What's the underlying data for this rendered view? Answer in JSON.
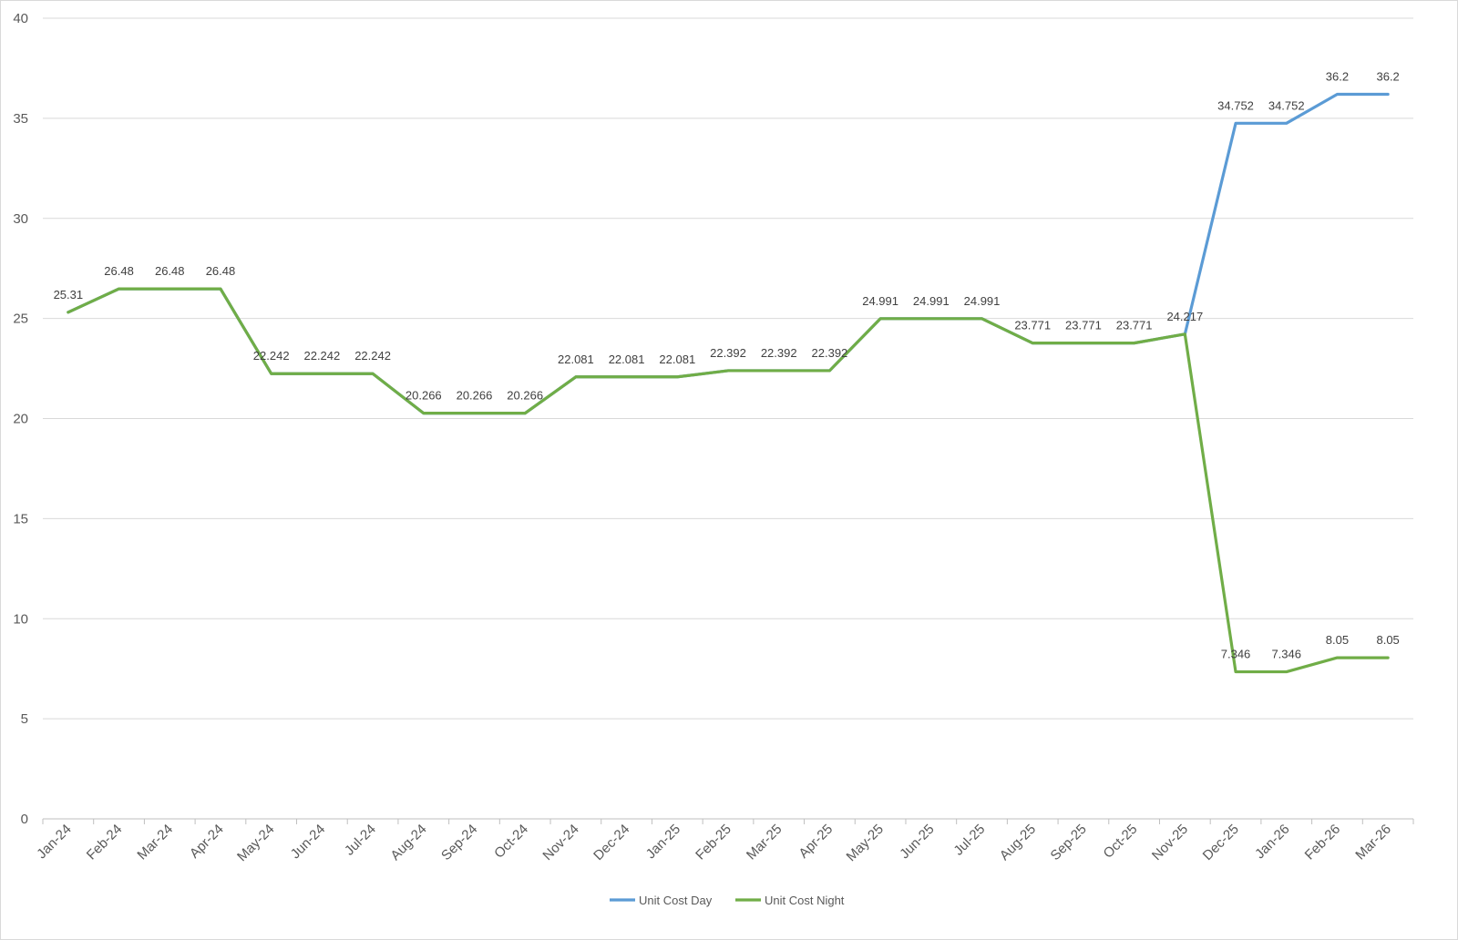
{
  "chart_data": {
    "type": "line",
    "title": "",
    "xlabel": "",
    "ylabel": "",
    "ylim": [
      0,
      40
    ],
    "yticks": [
      0,
      5,
      10,
      15,
      20,
      25,
      30,
      35,
      40
    ],
    "grid": "horizontal",
    "legend_position": "bottom",
    "categories": [
      "Jan-24",
      "Feb-24",
      "Mar-24",
      "Apr-24",
      "May-24",
      "Jun-24",
      "Jul-24",
      "Aug-24",
      "Sep-24",
      "Oct-24",
      "Nov-24",
      "Dec-24",
      "Jan-25",
      "Feb-25",
      "Mar-25",
      "Apr-25",
      "May-25",
      "Jun-25",
      "Jul-25",
      "Aug-25",
      "Sep-25",
      "Oct-25",
      "Nov-25",
      "Dec-25",
      "Jan-26",
      "Feb-26",
      "Mar-26"
    ],
    "series": [
      {
        "name": "Unit Cost Day",
        "color": "#5b9bd5",
        "values": [
          25.31,
          26.48,
          26.48,
          26.48,
          22.242,
          22.242,
          22.242,
          20.266,
          20.266,
          20.266,
          22.081,
          22.081,
          22.081,
          22.392,
          22.392,
          22.392,
          24.991,
          24.991,
          24.991,
          23.771,
          23.771,
          23.771,
          24.217,
          34.752,
          34.752,
          36.2,
          36.2
        ],
        "labels": [
          null,
          null,
          null,
          null,
          null,
          null,
          null,
          null,
          null,
          null,
          null,
          null,
          null,
          null,
          null,
          null,
          null,
          null,
          null,
          null,
          null,
          null,
          null,
          "34.752",
          "34.752",
          "36.2",
          "36.2"
        ]
      },
      {
        "name": "Unit Cost Night",
        "color": "#70ad47",
        "values": [
          25.31,
          26.48,
          26.48,
          26.48,
          22.242,
          22.242,
          22.242,
          20.266,
          20.266,
          20.266,
          22.081,
          22.081,
          22.081,
          22.392,
          22.392,
          22.392,
          24.991,
          24.991,
          24.991,
          23.771,
          23.771,
          23.771,
          24.217,
          7.346,
          7.346,
          8.05,
          8.05
        ],
        "labels": [
          "25.31",
          "26.48",
          "26.48",
          "26.48",
          "22.242",
          "22.242",
          "22.242",
          "20.266",
          "20.266",
          "20.266",
          "22.081",
          "22.081",
          "22.081",
          "22.392",
          "22.392",
          "22.392",
          "24.991",
          "24.991",
          "24.991",
          "23.771",
          "23.771",
          "23.771",
          "24.217",
          "7.346",
          "7.346",
          "8.05",
          "8.05"
        ]
      }
    ]
  }
}
